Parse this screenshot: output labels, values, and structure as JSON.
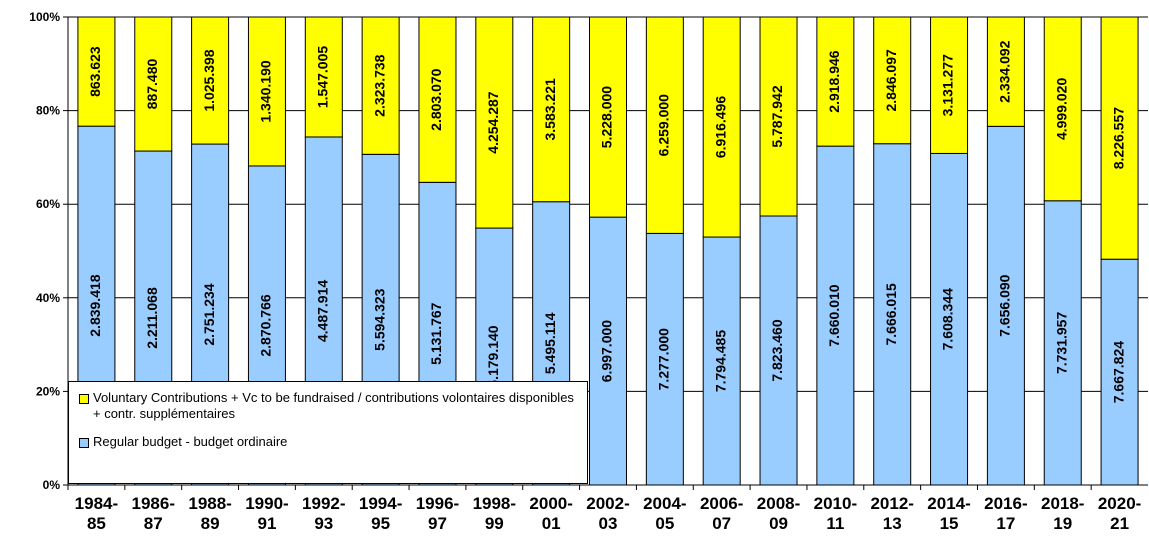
{
  "chart_data": {
    "type": "bar",
    "stacking": "percent",
    "categories": [
      "1984-85",
      "1986-87",
      "1988-89",
      "1990-91",
      "1992-93",
      "1994-95",
      "1996-97",
      "1998-99",
      "2000-01",
      "2002-03",
      "2004-05",
      "2006-07",
      "2008-09",
      "2010-11",
      "2012-13",
      "2014-15",
      "2016-17",
      "2018-19",
      "2020-21"
    ],
    "series": [
      {
        "name": "Regular budget - budget ordinaire",
        "color": "#99ccff",
        "values": [
          2839418,
          2211068,
          2751234,
          2870766,
          4487914,
          5594323,
          5131767,
          5179140,
          5495114,
          6997000,
          7277000,
          7794485,
          7823460,
          7660010,
          7666015,
          7608344,
          7656090,
          7731957,
          7667824
        ],
        "value_labels": [
          "2.839.418",
          "2.211.068",
          "2.751.234",
          "2.870.766",
          "4.487.914",
          "5.594.323",
          "5.131.767",
          "5.179.140",
          "5.495.114",
          "6.997.000",
          "7.277.000",
          "7.794.485",
          "7.823.460",
          "7.660.010",
          "7.666.015",
          "7.608.344",
          "7.656.090",
          "7.731.957",
          "7.667.824"
        ]
      },
      {
        "name": "Voluntary Contributions + Vc to be fundraised / contributions volontaires disponibles + contr. supplémentaires",
        "color": "#ffff00",
        "values": [
          863623,
          887480,
          1025398,
          1340190,
          1547005,
          2323738,
          2803070,
          4254287,
          3583221,
          5228000,
          6259000,
          6916496,
          5787942,
          2918946,
          2846097,
          3131277,
          2334092,
          4999020,
          8226557
        ],
        "value_labels": [
          "863.623",
          "887.480",
          "1.025.398",
          "1.340.190",
          "1.547.005",
          "2.323.738",
          "2.803.070",
          "4.254.287",
          "3.583.221",
          "5.228.000",
          "6.259.000",
          "6.916.496",
          "5.787.942",
          "2.918.946",
          "2.846.097",
          "3.131.277",
          "2.334.092",
          "4.999.020",
          "8.226.557"
        ]
      }
    ],
    "ylim": [
      0,
      100
    ],
    "yticks": [
      {
        "value": 0,
        "label": "0%"
      },
      {
        "value": 20,
        "label": "20%"
      },
      {
        "value": 40,
        "label": "40%"
      },
      {
        "value": 60,
        "label": "60%"
      },
      {
        "value": 80,
        "label": "80%"
      },
      {
        "value": 100,
        "label": "100%"
      }
    ],
    "grid": true,
    "legend": "bottom-left"
  }
}
